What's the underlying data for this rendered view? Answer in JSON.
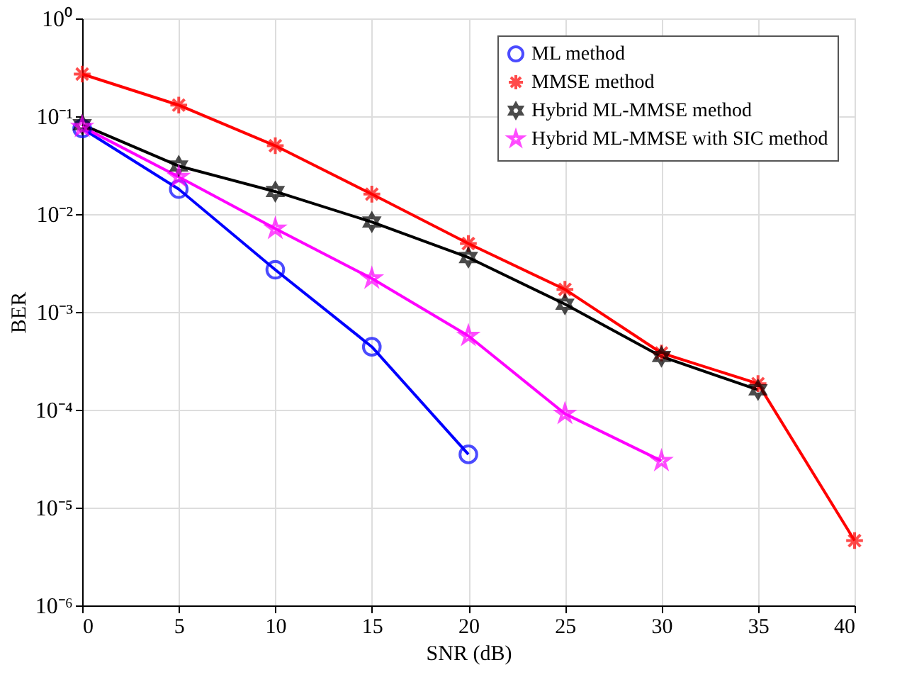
{
  "chart_data": {
    "type": "line",
    "xlabel": "SNR (dB)",
    "ylabel": "BER",
    "log": "y",
    "grid": true,
    "legend": "top right",
    "line_style": "solid",
    "xlim": [
      0,
      40
    ],
    "xticks": [
      0,
      5,
      10,
      15,
      20,
      25,
      30,
      35,
      40
    ],
    "ylim": [
      1e-06,
      1
    ],
    "yticks": [
      {
        "value": 1e-06,
        "label": "10⁻⁶"
      },
      {
        "value": 1e-05,
        "label": "10⁻⁵"
      },
      {
        "value": 0.0001,
        "label": "10⁻⁴"
      },
      {
        "value": 0.001,
        "label": "10⁻³"
      },
      {
        "value": 0.01,
        "label": "10⁻²"
      },
      {
        "value": 0.1,
        "label": "10⁻¹"
      },
      {
        "value": 1,
        "label": "10⁰"
      }
    ],
    "series": [
      {
        "name": "ML method",
        "color": "#0000ff",
        "marker": "circle",
        "x": [
          0,
          5,
          10,
          15,
          20
        ],
        "values": [
          0.075,
          0.018,
          0.0027,
          0.00044,
          3.5e-05
        ]
      },
      {
        "name": "MMSE method",
        "color": "#ff0000",
        "marker": "cross",
        "x": [
          0,
          5,
          10,
          15,
          20,
          25,
          30,
          35,
          40
        ],
        "values": [
          0.27,
          0.13,
          0.05,
          0.016,
          0.005,
          0.0017,
          0.00038,
          0.000185,
          4.6e-06
        ]
      },
      {
        "name": "Hybrid ML-MMSE method",
        "color": "#000000",
        "marker": "diamond",
        "x": [
          0,
          5,
          10,
          15,
          20,
          25,
          30,
          35
        ],
        "values": [
          0.082,
          0.031,
          0.017,
          0.0083,
          0.0036,
          0.0012,
          0.00035,
          0.00016
        ]
      },
      {
        "name": "Hybrid ML-MMSE with SIC method",
        "color": "#ff00ff",
        "marker": "star",
        "x": [
          0,
          5,
          10,
          15,
          20,
          25,
          30
        ],
        "values": [
          0.078,
          0.024,
          0.0071,
          0.0022,
          0.00057,
          9.1e-05,
          3e-05
        ]
      }
    ]
  }
}
